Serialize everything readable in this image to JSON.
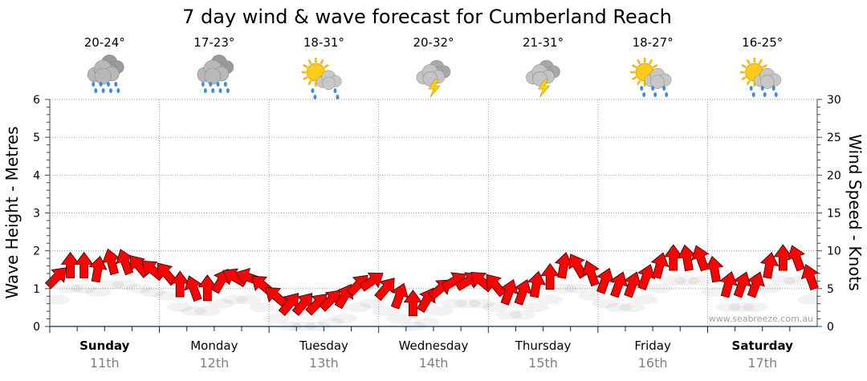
{
  "chart_data": {
    "type": "scatter",
    "title": "7 day wind & wave forecast for Cumberland Reach",
    "ylabel_left": "Wave Height - Metres",
    "ylabel_right": "Wind Speed - Knots",
    "ylim_left": [
      0,
      6
    ],
    "ylim_right": [
      0,
      30
    ],
    "yticks_left": [
      "0",
      "1",
      "2",
      "3",
      "4",
      "5",
      "6"
    ],
    "yticks_right": [
      "0",
      "5",
      "10",
      "15",
      "20",
      "25",
      "30"
    ],
    "grid": true,
    "days": [
      {
        "name": "Sunday",
        "date": "11th",
        "temp": "20-24°",
        "icon": "rain-cloud-icon",
        "bold": true
      },
      {
        "name": "Monday",
        "date": "12th",
        "temp": "17-23°",
        "icon": "rain-cloud-icon",
        "bold": false
      },
      {
        "name": "Tuesday",
        "date": "13th",
        "temp": "18-31°",
        "icon": "sun-cloud-shower-icon",
        "bold": false
      },
      {
        "name": "Wednesday",
        "date": "14th",
        "temp": "20-32°",
        "icon": "thunderstorm-icon",
        "bold": false
      },
      {
        "name": "Thursday",
        "date": "15th",
        "temp": "21-31°",
        "icon": "thunderstorm-icon",
        "bold": false
      },
      {
        "name": "Friday",
        "date": "16th",
        "temp": "18-27°",
        "icon": "sun-cloud-rain-icon",
        "bold": false
      },
      {
        "name": "Saturday",
        "date": "17th",
        "temp": "16-25°",
        "icon": "sun-cloud-rain-icon",
        "bold": true
      }
    ],
    "series": [
      {
        "name": "Wind",
        "interval_hours": 3,
        "speed_knots": [
          6.5,
          8,
          8,
          7.5,
          8.5,
          8.5,
          8,
          7.5,
          7,
          5.5,
          5,
          5,
          6,
          6.5,
          6.5,
          5.5,
          4,
          3,
          3,
          3,
          3.5,
          4,
          5.5,
          6,
          5,
          4,
          3,
          3.5,
          5,
          6,
          6,
          6,
          5.5,
          4.5,
          4.5,
          5.5,
          6.5,
          8,
          8,
          7,
          6,
          5.5,
          5.5,
          6.5,
          8,
          9,
          9,
          9,
          7.5,
          5.5,
          5.5,
          5.5,
          8,
          9,
          9,
          6.5
        ],
        "arrow_heading_deg": [
          45,
          0,
          0,
          10,
          -15,
          -20,
          -40,
          -50,
          -40,
          0,
          -20,
          0,
          30,
          -60,
          -70,
          -50,
          -50,
          40,
          40,
          45,
          45,
          30,
          45,
          55,
          40,
          20,
          0,
          30,
          50,
          60,
          60,
          -50,
          -40,
          20,
          20,
          10,
          0,
          10,
          -30,
          -20,
          20,
          20,
          20,
          20,
          15,
          0,
          -10,
          -20,
          -10,
          15,
          20,
          20,
          10,
          0,
          -20,
          -20
        ]
      }
    ],
    "colors": {
      "arrow": "#ff0000",
      "axis": "#1f5a8a"
    },
    "watermark": "www.seabreeze.com.au"
  }
}
